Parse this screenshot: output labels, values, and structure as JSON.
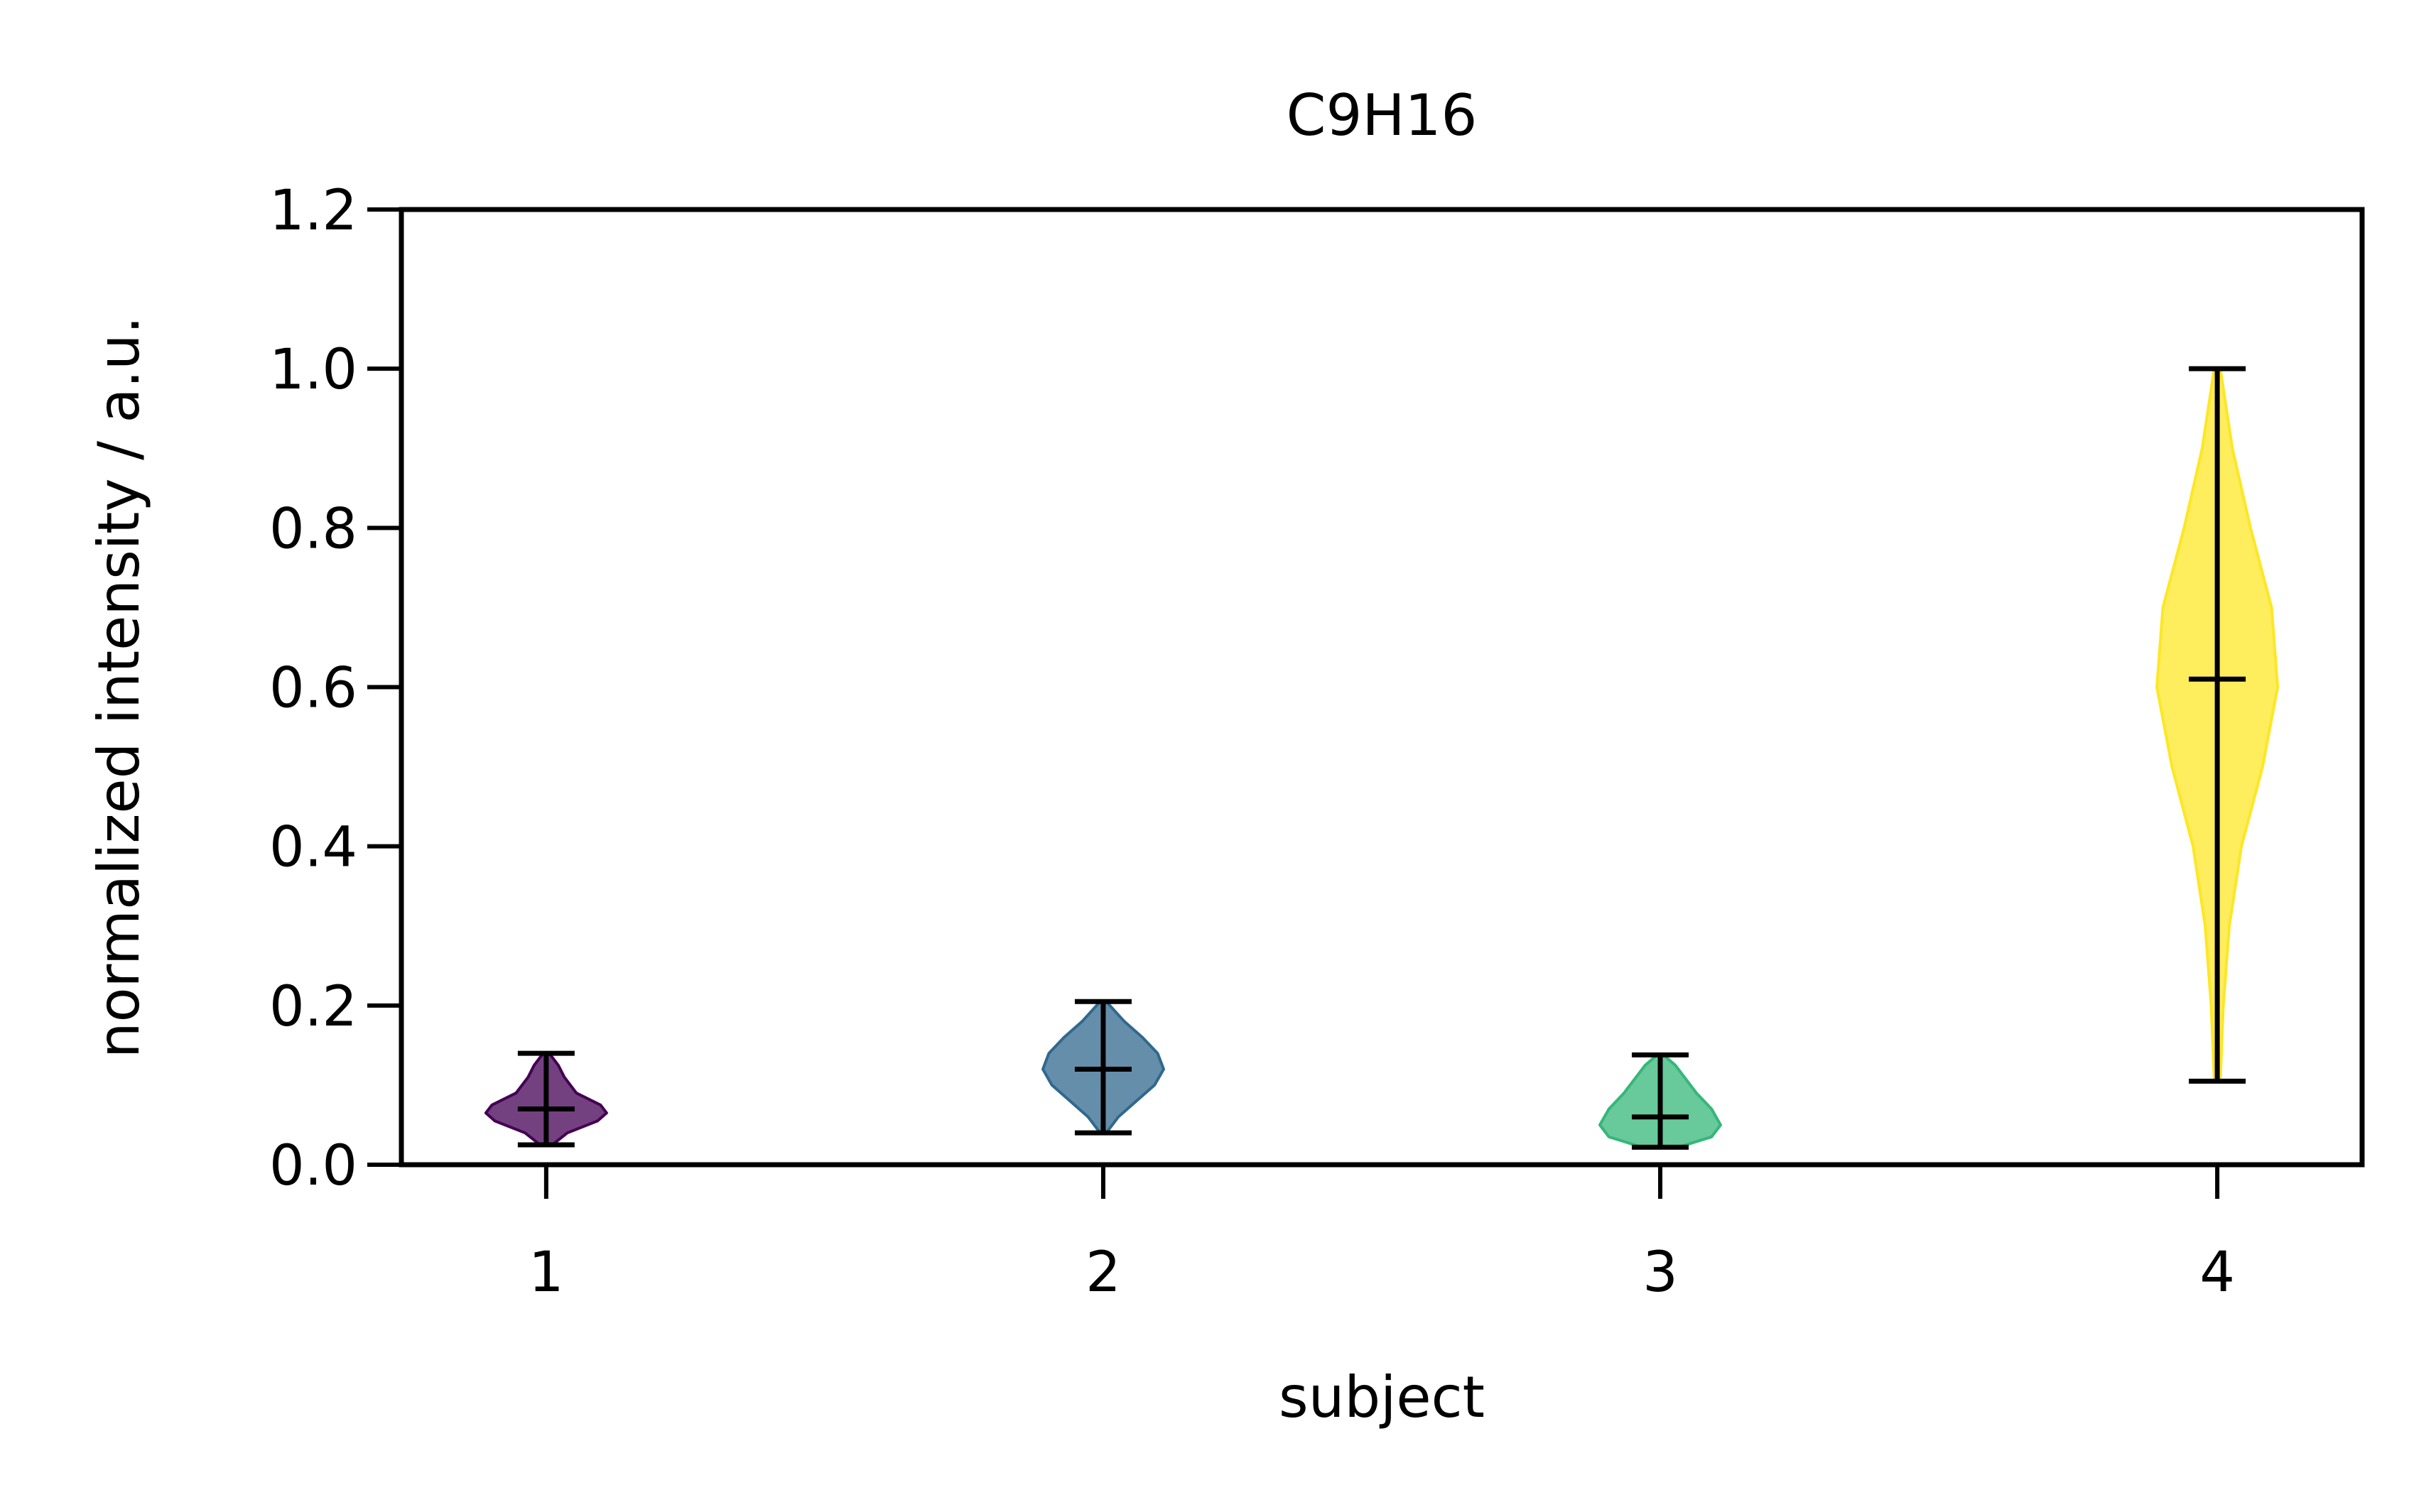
{
  "chart_data": {
    "type": "violin",
    "title": "C9H16",
    "xlabel": "subject",
    "ylabel": "normalized intensity / a.u.",
    "categories": [
      "1",
      "2",
      "3",
      "4"
    ],
    "xlim": [
      0.74,
      4.26
    ],
    "ylim": [
      0.0,
      1.2
    ],
    "yticks": [
      "0.0",
      "0.2",
      "0.4",
      "0.6",
      "0.8",
      "1.0",
      "1.2"
    ],
    "grid": false,
    "series": [
      {
        "category": "1",
        "min": 0.025,
        "mean": 0.07,
        "max": 0.14,
        "color": "#440154",
        "density": [
          [
            0.025,
            0.1
          ],
          [
            0.04,
            0.35
          ],
          [
            0.055,
            0.85
          ],
          [
            0.065,
            1.0
          ],
          [
            0.075,
            0.9
          ],
          [
            0.09,
            0.5
          ],
          [
            0.11,
            0.3
          ],
          [
            0.125,
            0.2
          ],
          [
            0.14,
            0.05
          ]
        ]
      },
      {
        "category": "2",
        "min": 0.04,
        "mean": 0.12,
        "max": 0.205,
        "color": "#31688e",
        "density": [
          [
            0.04,
            0.05
          ],
          [
            0.06,
            0.25
          ],
          [
            0.08,
            0.55
          ],
          [
            0.1,
            0.85
          ],
          [
            0.12,
            1.0
          ],
          [
            0.14,
            0.9
          ],
          [
            0.16,
            0.65
          ],
          [
            0.18,
            0.35
          ],
          [
            0.205,
            0.05
          ]
        ]
      },
      {
        "category": "3",
        "min": 0.022,
        "mean": 0.06,
        "max": 0.138,
        "color": "#35b779",
        "density": [
          [
            0.022,
            0.3
          ],
          [
            0.035,
            0.85
          ],
          [
            0.05,
            1.0
          ],
          [
            0.07,
            0.85
          ],
          [
            0.09,
            0.6
          ],
          [
            0.11,
            0.4
          ],
          [
            0.125,
            0.25
          ],
          [
            0.138,
            0.05
          ]
        ]
      },
      {
        "category": "4",
        "min": 0.105,
        "mean": 0.61,
        "max": 1.0,
        "color": "#fde725",
        "density": [
          [
            0.105,
            0.05
          ],
          [
            0.2,
            0.1
          ],
          [
            0.3,
            0.2
          ],
          [
            0.4,
            0.4
          ],
          [
            0.5,
            0.75
          ],
          [
            0.6,
            1.0
          ],
          [
            0.7,
            0.9
          ],
          [
            0.8,
            0.55
          ],
          [
            0.9,
            0.25
          ],
          [
            1.0,
            0.05
          ]
        ]
      }
    ]
  }
}
